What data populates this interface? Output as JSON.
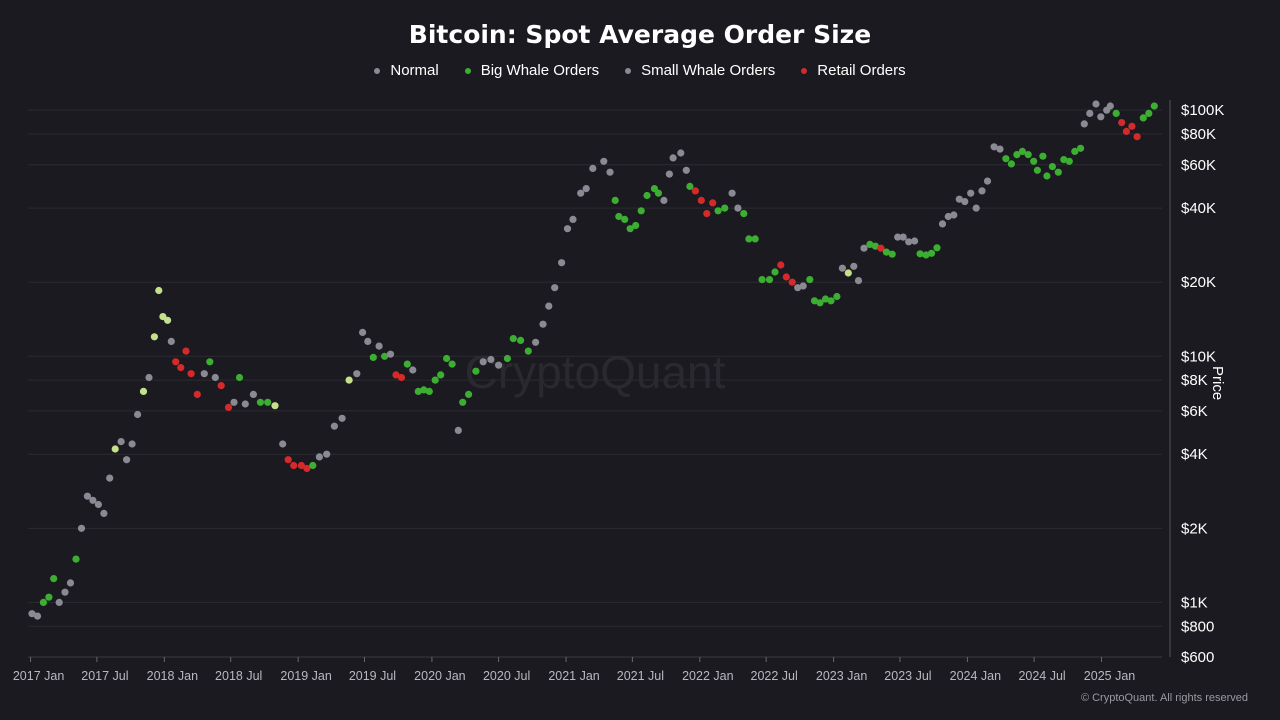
{
  "chart_data": {
    "type": "scatter",
    "title": "Bitcoin: Spot Average Order Size",
    "ylabel": "Price",
    "yscale": "log",
    "ylim": [
      600,
      110000
    ],
    "xlim": [
      "2016-12-25",
      "2025-06-15"
    ],
    "y_ticks": [
      {
        "value": 100000,
        "label": "$100K"
      },
      {
        "value": 80000,
        "label": "$80K"
      },
      {
        "value": 60000,
        "label": "$60K"
      },
      {
        "value": 40000,
        "label": "$40K"
      },
      {
        "value": 20000,
        "label": "$20K"
      },
      {
        "value": 10000,
        "label": "$10K"
      },
      {
        "value": 8000,
        "label": "$8K"
      },
      {
        "value": 6000,
        "label": "$6K"
      },
      {
        "value": 4000,
        "label": "$4K"
      },
      {
        "value": 2000,
        "label": "$2K"
      },
      {
        "value": 1000,
        "label": "$1K"
      },
      {
        "value": 800,
        "label": "$800"
      },
      {
        "value": 600,
        "label": "$600"
      }
    ],
    "x_ticks": [
      {
        "value": "2017-01-01",
        "label": "2017 Jan"
      },
      {
        "value": "2017-07-01",
        "label": "2017 Jul"
      },
      {
        "value": "2018-01-01",
        "label": "2018 Jan"
      },
      {
        "value": "2018-07-01",
        "label": "2018 Jul"
      },
      {
        "value": "2019-01-01",
        "label": "2019 Jan"
      },
      {
        "value": "2019-07-01",
        "label": "2019 Jul"
      },
      {
        "value": "2020-01-01",
        "label": "2020 Jan"
      },
      {
        "value": "2020-07-01",
        "label": "2020 Jul"
      },
      {
        "value": "2021-01-01",
        "label": "2021 Jan"
      },
      {
        "value": "2021-07-01",
        "label": "2021 Jul"
      },
      {
        "value": "2022-01-01",
        "label": "2022 Jan"
      },
      {
        "value": "2022-07-01",
        "label": "2022 Jul"
      },
      {
        "value": "2023-01-01",
        "label": "2023 Jan"
      },
      {
        "value": "2023-07-01",
        "label": "2023 Jul"
      },
      {
        "value": "2024-01-01",
        "label": "2024 Jan"
      },
      {
        "value": "2024-07-01",
        "label": "2024 Jul"
      },
      {
        "value": "2025-01-01",
        "label": "2025 Jan"
      }
    ],
    "grid": true,
    "legend_position": "top-center",
    "series": [
      {
        "name": "Normal",
        "key": "normal",
        "color": "#8a8a94"
      },
      {
        "name": "Big Whale Orders",
        "key": "big",
        "color": "#3cae32"
      },
      {
        "name": "Small Whale Orders",
        "key": "small",
        "color": "#c4e08a"
      },
      {
        "name": "Retail Orders",
        "key": "retail",
        "color": "#d42a2a"
      }
    ],
    "points": [
      [
        "2017-01-05",
        900,
        "normal"
      ],
      [
        "2017-01-20",
        880,
        "normal"
      ],
      [
        "2017-02-05",
        1000,
        "big"
      ],
      [
        "2017-02-20",
        1050,
        "big"
      ],
      [
        "2017-03-05",
        1250,
        "big"
      ],
      [
        "2017-03-20",
        1000,
        "normal"
      ],
      [
        "2017-04-05",
        1100,
        "normal"
      ],
      [
        "2017-04-20",
        1200,
        "normal"
      ],
      [
        "2017-05-05",
        1500,
        "big"
      ],
      [
        "2017-05-20",
        2000,
        "normal"
      ],
      [
        "2017-06-05",
        2700,
        "normal"
      ],
      [
        "2017-06-20",
        2600,
        "normal"
      ],
      [
        "2017-07-05",
        2500,
        "normal"
      ],
      [
        "2017-07-20",
        2300,
        "normal"
      ],
      [
        "2017-08-05",
        3200,
        "normal"
      ],
      [
        "2017-08-20",
        4200,
        "small"
      ],
      [
        "2017-09-05",
        4500,
        "normal"
      ],
      [
        "2017-09-20",
        3800,
        "normal"
      ],
      [
        "2017-10-05",
        4400,
        "normal"
      ],
      [
        "2017-10-20",
        5800,
        "normal"
      ],
      [
        "2017-11-05",
        7200,
        "small"
      ],
      [
        "2017-11-20",
        8200,
        "normal"
      ],
      [
        "2017-12-05",
        12000,
        "small"
      ],
      [
        "2017-12-17",
        18500,
        "small"
      ],
      [
        "2017-12-28",
        14500,
        "small"
      ],
      [
        "2018-01-10",
        14000,
        "small"
      ],
      [
        "2018-01-20",
        11500,
        "normal"
      ],
      [
        "2018-02-01",
        9500,
        "retail"
      ],
      [
        "2018-02-15",
        9000,
        "retail"
      ],
      [
        "2018-03-01",
        10500,
        "retail"
      ],
      [
        "2018-03-15",
        8500,
        "retail"
      ],
      [
        "2018-04-01",
        7000,
        "retail"
      ],
      [
        "2018-04-20",
        8500,
        "normal"
      ],
      [
        "2018-05-05",
        9500,
        "big"
      ],
      [
        "2018-05-20",
        8200,
        "normal"
      ],
      [
        "2018-06-05",
        7600,
        "retail"
      ],
      [
        "2018-06-25",
        6200,
        "retail"
      ],
      [
        "2018-07-10",
        6500,
        "normal"
      ],
      [
        "2018-07-25",
        8200,
        "big"
      ],
      [
        "2018-08-10",
        6400,
        "normal"
      ],
      [
        "2018-09-01",
        7000,
        "normal"
      ],
      [
        "2018-09-20",
        6500,
        "big"
      ],
      [
        "2018-10-10",
        6500,
        "big"
      ],
      [
        "2018-10-30",
        6300,
        "small"
      ],
      [
        "2018-11-20",
        4400,
        "normal"
      ],
      [
        "2018-12-05",
        3800,
        "retail"
      ],
      [
        "2018-12-20",
        3600,
        "retail"
      ],
      [
        "2019-01-10",
        3600,
        "retail"
      ],
      [
        "2019-01-25",
        3500,
        "retail"
      ],
      [
        "2019-02-10",
        3600,
        "big"
      ],
      [
        "2019-02-28",
        3900,
        "normal"
      ],
      [
        "2019-03-20",
        4000,
        "normal"
      ],
      [
        "2019-04-10",
        5200,
        "normal"
      ],
      [
        "2019-05-01",
        5600,
        "normal"
      ],
      [
        "2019-05-20",
        8000,
        "small"
      ],
      [
        "2019-06-10",
        8500,
        "normal"
      ],
      [
        "2019-06-26",
        12500,
        "normal"
      ],
      [
        "2019-07-10",
        11500,
        "normal"
      ],
      [
        "2019-07-25",
        9900,
        "big"
      ],
      [
        "2019-08-10",
        11000,
        "normal"
      ],
      [
        "2019-08-25",
        10000,
        "big"
      ],
      [
        "2019-09-10",
        10200,
        "normal"
      ],
      [
        "2019-09-25",
        8400,
        "retail"
      ],
      [
        "2019-10-10",
        8200,
        "retail"
      ],
      [
        "2019-10-26",
        9300,
        "big"
      ],
      [
        "2019-11-10",
        8800,
        "normal"
      ],
      [
        "2019-11-25",
        7200,
        "big"
      ],
      [
        "2019-12-10",
        7300,
        "big"
      ],
      [
        "2019-12-25",
        7200,
        "big"
      ],
      [
        "2020-01-10",
        8000,
        "big"
      ],
      [
        "2020-01-25",
        8400,
        "big"
      ],
      [
        "2020-02-10",
        9800,
        "big"
      ],
      [
        "2020-02-25",
        9300,
        "big"
      ],
      [
        "2020-03-13",
        5000,
        "normal"
      ],
      [
        "2020-03-25",
        6500,
        "big"
      ],
      [
        "2020-04-10",
        7000,
        "big"
      ],
      [
        "2020-04-30",
        8700,
        "big"
      ],
      [
        "2020-05-20",
        9500,
        "normal"
      ],
      [
        "2020-06-10",
        9700,
        "normal"
      ],
      [
        "2020-07-01",
        9200,
        "normal"
      ],
      [
        "2020-07-25",
        9800,
        "big"
      ],
      [
        "2020-08-10",
        11800,
        "big"
      ],
      [
        "2020-08-30",
        11600,
        "big"
      ],
      [
        "2020-09-20",
        10500,
        "big"
      ],
      [
        "2020-10-10",
        11400,
        "normal"
      ],
      [
        "2020-10-30",
        13500,
        "normal"
      ],
      [
        "2020-11-15",
        16000,
        "normal"
      ],
      [
        "2020-12-01",
        19000,
        "normal"
      ],
      [
        "2020-12-20",
        24000,
        "normal"
      ],
      [
        "2021-01-05",
        33000,
        "normal"
      ],
      [
        "2021-01-20",
        36000,
        "normal"
      ],
      [
        "2021-02-10",
        46000,
        "normal"
      ],
      [
        "2021-02-25",
        48000,
        "normal"
      ],
      [
        "2021-03-15",
        58000,
        "normal"
      ],
      [
        "2021-04-14",
        62000,
        "normal"
      ],
      [
        "2021-05-01",
        56000,
        "normal"
      ],
      [
        "2021-05-15",
        43000,
        "big"
      ],
      [
        "2021-05-25",
        37000,
        "big"
      ],
      [
        "2021-06-10",
        36000,
        "big"
      ],
      [
        "2021-06-25",
        33000,
        "big"
      ],
      [
        "2021-07-10",
        34000,
        "big"
      ],
      [
        "2021-07-25",
        39000,
        "big"
      ],
      [
        "2021-08-10",
        45000,
        "big"
      ],
      [
        "2021-08-30",
        48000,
        "big"
      ],
      [
        "2021-09-10",
        46000,
        "big"
      ],
      [
        "2021-09-25",
        43000,
        "normal"
      ],
      [
        "2021-10-10",
        55000,
        "normal"
      ],
      [
        "2021-10-20",
        64000,
        "normal"
      ],
      [
        "2021-11-10",
        67000,
        "normal"
      ],
      [
        "2021-11-25",
        57000,
        "normal"
      ],
      [
        "2021-12-05",
        49000,
        "big"
      ],
      [
        "2021-12-20",
        47000,
        "retail"
      ],
      [
        "2022-01-05",
        43000,
        "retail"
      ],
      [
        "2022-01-20",
        38000,
        "retail"
      ],
      [
        "2022-02-05",
        42000,
        "retail"
      ],
      [
        "2022-02-20",
        39000,
        "big"
      ],
      [
        "2022-03-10",
        40000,
        "big"
      ],
      [
        "2022-03-30",
        46000,
        "normal"
      ],
      [
        "2022-04-15",
        40000,
        "normal"
      ],
      [
        "2022-05-01",
        38000,
        "big"
      ],
      [
        "2022-05-15",
        30000,
        "big"
      ],
      [
        "2022-06-01",
        30000,
        "big"
      ],
      [
        "2022-06-20",
        20500,
        "big"
      ],
      [
        "2022-07-10",
        20500,
        "big"
      ],
      [
        "2022-07-25",
        22000,
        "big"
      ],
      [
        "2022-08-10",
        23500,
        "retail"
      ],
      [
        "2022-08-25",
        21000,
        "retail"
      ],
      [
        "2022-09-10",
        20000,
        "retail"
      ],
      [
        "2022-09-25",
        19000,
        "normal"
      ],
      [
        "2022-10-10",
        19300,
        "normal"
      ],
      [
        "2022-10-28",
        20500,
        "big"
      ],
      [
        "2022-11-10",
        16800,
        "big"
      ],
      [
        "2022-11-25",
        16500,
        "big"
      ],
      [
        "2022-12-10",
        17100,
        "big"
      ],
      [
        "2022-12-25",
        16800,
        "big"
      ],
      [
        "2023-01-10",
        17500,
        "big"
      ],
      [
        "2023-01-25",
        22800,
        "normal"
      ],
      [
        "2023-02-10",
        21800,
        "small"
      ],
      [
        "2023-02-25",
        23200,
        "normal"
      ],
      [
        "2023-03-10",
        20300,
        "normal"
      ],
      [
        "2023-03-25",
        27500,
        "normal"
      ],
      [
        "2023-04-10",
        28500,
        "big"
      ],
      [
        "2023-04-25",
        28000,
        "big"
      ],
      [
        "2023-05-10",
        27500,
        "retail"
      ],
      [
        "2023-05-25",
        26500,
        "big"
      ],
      [
        "2023-06-10",
        26000,
        "big"
      ],
      [
        "2023-06-25",
        30500,
        "normal"
      ],
      [
        "2023-07-10",
        30500,
        "normal"
      ],
      [
        "2023-07-25",
        29200,
        "normal"
      ],
      [
        "2023-08-10",
        29400,
        "normal"
      ],
      [
        "2023-08-25",
        26100,
        "big"
      ],
      [
        "2023-09-10",
        25800,
        "big"
      ],
      [
        "2023-09-25",
        26200,
        "big"
      ],
      [
        "2023-10-10",
        27600,
        "big"
      ],
      [
        "2023-10-25",
        34500,
        "normal"
      ],
      [
        "2023-11-10",
        37000,
        "normal"
      ],
      [
        "2023-11-25",
        37500,
        "normal"
      ],
      [
        "2023-12-10",
        43500,
        "normal"
      ],
      [
        "2023-12-25",
        42500,
        "normal"
      ],
      [
        "2024-01-10",
        46000,
        "normal"
      ],
      [
        "2024-01-25",
        40000,
        "normal"
      ],
      [
        "2024-02-10",
        47000,
        "normal"
      ],
      [
        "2024-02-25",
        51500,
        "normal"
      ],
      [
        "2024-03-14",
        71000,
        "normal"
      ],
      [
        "2024-03-30",
        69500,
        "normal"
      ],
      [
        "2024-04-15",
        63500,
        "big"
      ],
      [
        "2024-04-30",
        60500,
        "big"
      ],
      [
        "2024-05-15",
        66000,
        "big"
      ],
      [
        "2024-05-30",
        68000,
        "big"
      ],
      [
        "2024-06-15",
        66000,
        "big"
      ],
      [
        "2024-06-30",
        62000,
        "big"
      ],
      [
        "2024-07-10",
        57000,
        "big"
      ],
      [
        "2024-07-25",
        65000,
        "big"
      ],
      [
        "2024-08-05",
        54000,
        "big"
      ],
      [
        "2024-08-20",
        59000,
        "big"
      ],
      [
        "2024-09-05",
        56000,
        "big"
      ],
      [
        "2024-09-20",
        63000,
        "big"
      ],
      [
        "2024-10-05",
        62000,
        "big"
      ],
      [
        "2024-10-20",
        68000,
        "big"
      ],
      [
        "2024-11-05",
        70000,
        "big"
      ],
      [
        "2024-11-15",
        88000,
        "normal"
      ],
      [
        "2024-11-30",
        97000,
        "normal"
      ],
      [
        "2024-12-17",
        106000,
        "normal"
      ],
      [
        "2024-12-30",
        94000,
        "normal"
      ],
      [
        "2025-01-15",
        100000,
        "normal"
      ],
      [
        "2025-01-25",
        104000,
        "normal"
      ],
      [
        "2025-02-10",
        97000,
        "big"
      ],
      [
        "2025-02-25",
        89000,
        "retail"
      ],
      [
        "2025-03-10",
        82000,
        "retail"
      ],
      [
        "2025-03-25",
        86000,
        "retail"
      ],
      [
        "2025-04-08",
        78000,
        "retail"
      ],
      [
        "2025-04-25",
        93000,
        "big"
      ],
      [
        "2025-05-10",
        97000,
        "big"
      ],
      [
        "2025-05-25",
        104000,
        "big"
      ]
    ]
  },
  "watermark": "CryptoQuant",
  "copyright": "© CryptoQuant. All rights reserved"
}
